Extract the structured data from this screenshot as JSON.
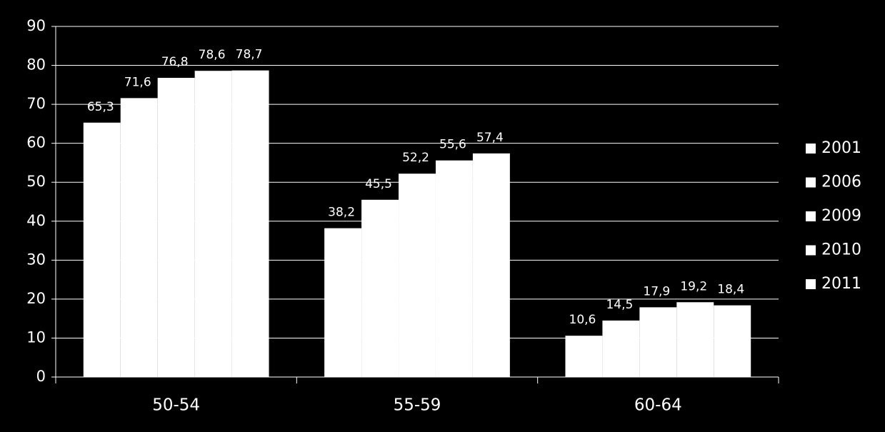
{
  "chart_data": {
    "type": "bar",
    "background": "#000000",
    "categories": [
      "50-54",
      "55-59",
      "60-64"
    ],
    "series": [
      {
        "name": "2001",
        "color": "#ffffff",
        "values": [
          65.3,
          38.2,
          10.6
        ],
        "value_labels": [
          "65,3",
          "38,2",
          "10,6"
        ]
      },
      {
        "name": "2006",
        "color": "#ffffff",
        "values": [
          71.6,
          45.5,
          14.5
        ],
        "value_labels": [
          "71,6",
          "45,5",
          "14,5"
        ]
      },
      {
        "name": "2009",
        "color": "#ffffff",
        "values": [
          76.8,
          52.2,
          17.9
        ],
        "value_labels": [
          "76,8",
          "52,2",
          "17,9"
        ]
      },
      {
        "name": "2010",
        "color": "#ffffff",
        "values": [
          78.6,
          55.6,
          19.2
        ],
        "value_labels": [
          "78,6",
          "55,6",
          "19,2"
        ]
      },
      {
        "name": "2011",
        "color": "#ffffff",
        "values": [
          78.7,
          57.4,
          18.4
        ],
        "value_labels": [
          "78,7",
          "57,4",
          "18,4"
        ]
      }
    ],
    "ylim": [
      0,
      90
    ],
    "yticks": [
      0,
      10,
      20,
      30,
      40,
      50,
      60,
      70,
      80,
      90
    ],
    "grid": true,
    "legend": "right"
  }
}
